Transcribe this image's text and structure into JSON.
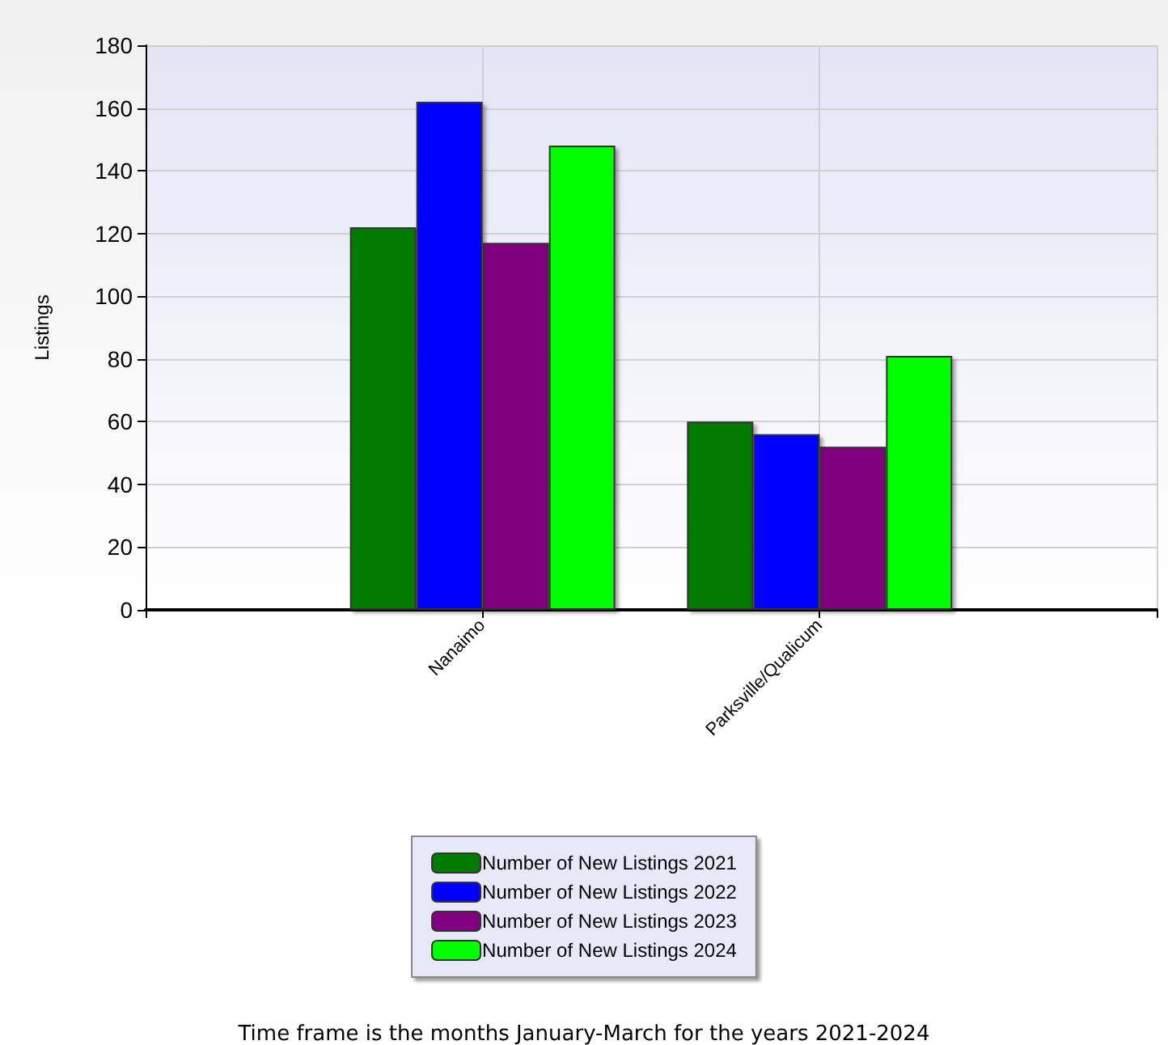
{
  "chart_data": {
    "type": "bar",
    "ylabel": "Listings",
    "categories": [
      null,
      "Nanaimo",
      "Parksville/Qualicum",
      null
    ],
    "series": [
      {
        "name": "Number of New Listings 2021",
        "color": "#007a00",
        "values": [
          null,
          122,
          60,
          null
        ]
      },
      {
        "name": "Number of New Listings 2022",
        "color": "#0000ff",
        "values": [
          null,
          162,
          56,
          null
        ]
      },
      {
        "name": "Number of New Listings 2023",
        "color": "#800080",
        "values": [
          null,
          117,
          52,
          null
        ]
      },
      {
        "name": "Number of New Listings 2024",
        "color": "#00ff00",
        "values": [
          null,
          148,
          81,
          null
        ]
      }
    ],
    "ylim": [
      0,
      180
    ],
    "yticks": [
      0,
      20,
      40,
      60,
      80,
      100,
      120,
      140,
      160,
      180
    ],
    "grid": true,
    "legend": "bottom",
    "annotations": [
      "Time frame is the months January-March for the years 2021-2024"
    ]
  }
}
